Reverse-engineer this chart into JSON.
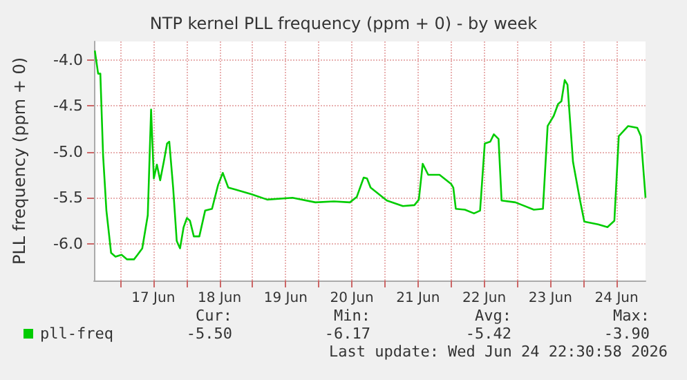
{
  "chart_data": {
    "type": "line",
    "title": "NTP kernel PLL frequency (ppm + 0) - by week",
    "ylabel": "PLL frequency (ppm + 0)",
    "x": [
      "2026-06-16T14:48",
      "2026-06-16T16:00",
      "2026-06-16T16:48",
      "2026-06-16T17:48",
      "2026-06-16T19:00",
      "2026-06-16T20:42",
      "2026-06-16T22:18",
      "2026-06-17T00:30",
      "2026-06-17T02:30",
      "2026-06-17T05:00",
      "2026-06-17T06:18",
      "2026-06-17T08:00",
      "2026-06-17T10:00",
      "2026-06-17T11:12",
      "2026-06-17T12:12",
      "2026-06-17T13:18",
      "2026-06-17T14:30",
      "2026-06-17T15:48",
      "2026-06-17T17:00",
      "2026-06-17T17:48",
      "2026-06-17T19:12",
      "2026-06-17T20:30",
      "2026-06-17T21:42",
      "2026-06-17T23:00",
      "2026-06-18T00:12",
      "2026-06-18T01:18",
      "2026-06-18T02:42",
      "2026-06-18T04:42",
      "2026-06-18T06:48",
      "2026-06-18T09:18",
      "2026-06-18T11:30",
      "2026-06-18T13:12",
      "2026-06-18T15:12",
      "2026-06-18T17:42",
      "2026-06-18T23:30",
      "2026-06-19T05:18",
      "2026-06-19T14:30",
      "2026-06-19T22:48",
      "2026-06-20T05:30",
      "2026-06-20T11:18",
      "2026-06-20T13:48",
      "2026-06-20T16:18",
      "2026-06-20T17:30",
      "2026-06-20T18:48",
      "2026-06-21T00:42",
      "2026-06-21T06:30",
      "2026-06-21T10:42",
      "2026-06-21T12:18",
      "2026-06-21T13:42",
      "2026-06-21T15:42",
      "2026-06-21T19:48",
      "2026-06-22T00:00",
      "2026-06-22T00:48",
      "2026-06-22T01:42",
      "2026-06-22T05:00",
      "2026-06-22T08:18",
      "2026-06-22T10:30",
      "2026-06-22T12:12",
      "2026-06-22T14:12",
      "2026-06-22T15:30",
      "2026-06-22T17:12",
      "2026-06-22T18:18",
      "2026-06-22T23:18",
      "2026-06-23T06:00",
      "2026-06-23T09:18",
      "2026-06-23T11:00",
      "2026-06-23T13:12",
      "2026-06-23T14:48",
      "2026-06-23T16:00",
      "2026-06-23T17:12",
      "2026-06-23T18:12",
      "2026-06-23T20:12",
      "2026-06-23T22:42",
      "2026-06-24T00:18",
      "2026-06-24T05:18",
      "2026-06-24T08:42",
      "2026-06-24T11:12",
      "2026-06-24T12:48",
      "2026-06-24T16:12",
      "2026-06-24T19:30",
      "2026-06-24T20:48",
      "2026-06-24T22:30"
    ],
    "series": [
      {
        "name": "pll-freq",
        "color": "#00cc00",
        "values": [
          -3.9,
          -4.15,
          -4.15,
          -5.04,
          -5.64,
          -6.1,
          -6.14,
          -6.12,
          -6.17,
          -6.17,
          -6.12,
          -6.05,
          -5.69,
          -4.54,
          -5.29,
          -5.14,
          -5.31,
          -5.11,
          -4.91,
          -4.89,
          -5.39,
          -5.97,
          -6.05,
          -5.82,
          -5.72,
          -5.75,
          -5.92,
          -5.92,
          -5.64,
          -5.62,
          -5.36,
          -5.23,
          -5.39,
          -5.41,
          -5.46,
          -5.52,
          -5.5,
          -5.55,
          -5.54,
          -5.55,
          -5.49,
          -5.28,
          -5.29,
          -5.39,
          -5.53,
          -5.59,
          -5.58,
          -5.52,
          -5.13,
          -5.25,
          -5.25,
          -5.35,
          -5.39,
          -5.62,
          -5.63,
          -5.67,
          -5.64,
          -4.91,
          -4.89,
          -4.81,
          -4.86,
          -5.53,
          -5.55,
          -5.63,
          -5.62,
          -4.72,
          -4.61,
          -4.48,
          -4.45,
          -4.22,
          -4.27,
          -5.11,
          -5.52,
          -5.76,
          -5.79,
          -5.82,
          -5.75,
          -4.83,
          -4.72,
          -4.74,
          -4.83,
          -5.5
        ]
      }
    ],
    "xlim": [
      "2026-06-16T14:30",
      "2026-06-24T22:30"
    ],
    "xticks": [
      {
        "value": "2026-06-17T00:00",
        "label": null
      },
      {
        "value": "2026-06-17T12:00",
        "label": "17 Jun"
      },
      {
        "value": "2026-06-18T00:00",
        "label": null
      },
      {
        "value": "2026-06-18T12:00",
        "label": "18 Jun"
      },
      {
        "value": "2026-06-19T00:00",
        "label": null
      },
      {
        "value": "2026-06-19T12:00",
        "label": "19 Jun"
      },
      {
        "value": "2026-06-20T00:00",
        "label": null
      },
      {
        "value": "2026-06-20T12:00",
        "label": "20 Jun"
      },
      {
        "value": "2026-06-21T00:00",
        "label": null
      },
      {
        "value": "2026-06-21T12:00",
        "label": "21 Jun"
      },
      {
        "value": "2026-06-22T00:00",
        "label": null
      },
      {
        "value": "2026-06-22T12:00",
        "label": "22 Jun"
      },
      {
        "value": "2026-06-23T00:00",
        "label": null
      },
      {
        "value": "2026-06-23T12:00",
        "label": "23 Jun"
      },
      {
        "value": "2026-06-24T00:00",
        "label": null
      },
      {
        "value": "2026-06-24T12:00",
        "label": "24 Jun"
      }
    ],
    "ylim": [
      -6.4,
      -3.8
    ],
    "yticks": [
      {
        "value": -6,
        "label": "-6.0"
      },
      {
        "value": -5.5,
        "label": "-5.5"
      },
      {
        "value": -5,
        "label": "-5.0"
      },
      {
        "value": -4.5,
        "label": "-4.5"
      },
      {
        "value": -4,
        "label": "-4.0"
      }
    ],
    "grid": true,
    "legend": "bottom left",
    "marker": "none",
    "line_style": "solid",
    "annotations": [
      "Cur:",
      "Min:",
      "Avg:",
      "Max:",
      "-5.50",
      "-6.17",
      "-5.42",
      "-3.90",
      "Last update: Wed Jun 24 22:30:58 2026"
    ]
  }
}
